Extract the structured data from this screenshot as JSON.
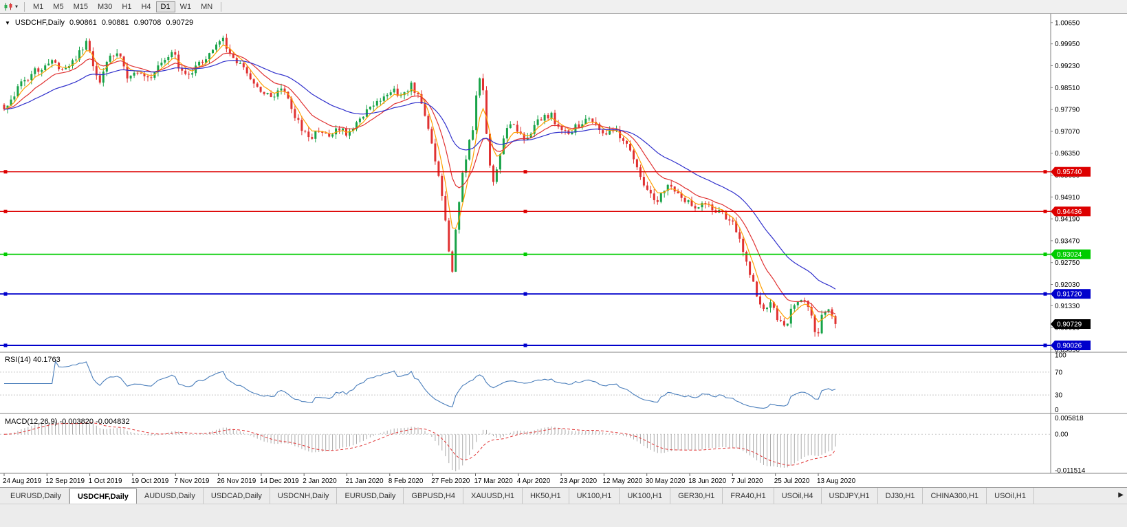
{
  "icons": {
    "collapse": "▼",
    "dropdown": "▾",
    "scroll_right": "▶"
  },
  "toolbar": {
    "timeframes": [
      "M1",
      "M5",
      "M15",
      "M30",
      "H1",
      "H4",
      "D1",
      "W1",
      "MN"
    ],
    "active_timeframe": "D1"
  },
  "chart_header": {
    "symbol": "USDCHF,Daily",
    "open": "0.90861",
    "high": "0.90881",
    "low": "0.90708",
    "close": "0.90729"
  },
  "chart_data": {
    "type": "candlestick",
    "symbol": "USDCHF",
    "timeframe": "Daily",
    "last_bar": {
      "open": 0.90861,
      "high": 0.90881,
      "low": 0.90708,
      "close": 0.90729
    },
    "current_price": {
      "value": 0.90729,
      "label": "0.90729",
      "tag_color": "#000000"
    },
    "price_axis": {
      "min": 0.898,
      "max": 1.0094,
      "labels": [
        "1.00650",
        "0.99950",
        "0.99230",
        "0.98510",
        "0.97790",
        "0.97070",
        "0.96350",
        "0.95630",
        "0.94910",
        "0.94190",
        "0.93470",
        "0.92750",
        "0.92030",
        "0.91330",
        "0.90610",
        "0.89890"
      ]
    },
    "colors": {
      "up": "#18a348",
      "down": "#e03232",
      "background": "#ffffff"
    },
    "levels": [
      {
        "value": 0.9574,
        "label": "0.95740",
        "color": "#dd0000",
        "width": 1.4,
        "type": "resistance"
      },
      {
        "value": 0.94436,
        "label": "0.94436",
        "color": "#dd0000",
        "width": 1.4,
        "type": "resistance"
      },
      {
        "value": 0.93024,
        "label": "0.93024",
        "color": "#00cc00",
        "width": 1.8,
        "type": "support"
      },
      {
        "value": 0.9172,
        "label": "0.91720",
        "color": "#0000cc",
        "width": 2,
        "type": "support"
      },
      {
        "value": 0.90026,
        "label": "0.90026",
        "color": "#0000cc",
        "width": 2,
        "type": "support"
      }
    ],
    "moving_averages": [
      {
        "name": "fast",
        "period": 5,
        "color": "#ffa000"
      },
      {
        "name": "medium",
        "period": 13,
        "color": "#e03232"
      },
      {
        "name": "slow",
        "period": 34,
        "color": "#3030cc"
      }
    ],
    "num_candles": 244,
    "price_path": [
      [
        0,
        0.978
      ],
      [
        0.02,
        0.986
      ],
      [
        0.04,
        0.991
      ],
      [
        0.057,
        0.994
      ],
      [
        0.07,
        0.99
      ],
      [
        0.09,
        0.996
      ],
      [
        0.098,
        1.0
      ],
      [
        0.107,
        0.993
      ],
      [
        0.115,
        0.987
      ],
      [
        0.127,
        0.995
      ],
      [
        0.136,
        0.997
      ],
      [
        0.148,
        0.989
      ],
      [
        0.16,
        0.991
      ],
      [
        0.173,
        0.988
      ],
      [
        0.189,
        0.993
      ],
      [
        0.202,
        0.997
      ],
      [
        0.212,
        0.991
      ],
      [
        0.222,
        0.989
      ],
      [
        0.235,
        0.993
      ],
      [
        0.251,
        0.998
      ],
      [
        0.261,
        1.0015
      ],
      [
        0.27,
        0.998
      ],
      [
        0.28,
        0.9935
      ],
      [
        0.293,
        0.989
      ],
      [
        0.305,
        0.9855
      ],
      [
        0.322,
        0.982
      ],
      [
        0.334,
        0.9845
      ],
      [
        0.347,
        0.978
      ],
      [
        0.357,
        0.9715
      ],
      [
        0.369,
        0.9685
      ],
      [
        0.38,
        0.9715
      ],
      [
        0.392,
        0.9695
      ],
      [
        0.404,
        0.9715
      ],
      [
        0.413,
        0.9702
      ],
      [
        0.425,
        0.9745
      ],
      [
        0.437,
        0.9775
      ],
      [
        0.452,
        0.9815
      ],
      [
        0.466,
        0.9845
      ],
      [
        0.479,
        0.9825
      ],
      [
        0.489,
        0.986
      ],
      [
        0.495,
        0.984
      ],
      [
        0.504,
        0.978
      ],
      [
        0.512,
        0.97
      ],
      [
        0.52,
        0.96
      ],
      [
        0.528,
        0.948
      ],
      [
        0.534,
        0.933
      ],
      [
        0.539,
        0.924
      ],
      [
        0.545,
        0.943
      ],
      [
        0.551,
        0.956
      ],
      [
        0.558,
        0.966
      ],
      [
        0.564,
        0.972
      ],
      [
        0.57,
        0.987
      ],
      [
        0.574,
        0.99
      ],
      [
        0.579,
        0.974
      ],
      [
        0.584,
        0.96
      ],
      [
        0.589,
        0.953
      ],
      [
        0.596,
        0.963
      ],
      [
        0.603,
        0.97
      ],
      [
        0.611,
        0.973
      ],
      [
        0.62,
        0.97
      ],
      [
        0.628,
        0.968
      ],
      [
        0.638,
        0.9725
      ],
      [
        0.648,
        0.975
      ],
      [
        0.657,
        0.9765
      ],
      [
        0.667,
        0.972
      ],
      [
        0.677,
        0.97
      ],
      [
        0.69,
        0.9725
      ],
      [
        0.702,
        0.9745
      ],
      [
        0.715,
        0.972
      ],
      [
        0.727,
        0.97
      ],
      [
        0.739,
        0.97
      ],
      [
        0.749,
        0.966
      ],
      [
        0.758,
        0.96
      ],
      [
        0.766,
        0.955
      ],
      [
        0.777,
        0.95
      ],
      [
        0.785,
        0.946
      ],
      [
        0.793,
        0.951
      ],
      [
        0.801,
        0.9525
      ],
      [
        0.812,
        0.95
      ],
      [
        0.822,
        0.948
      ],
      [
        0.832,
        0.9455
      ],
      [
        0.843,
        0.9475
      ],
      [
        0.851,
        0.9448
      ],
      [
        0.862,
        0.944
      ],
      [
        0.872,
        0.942
      ],
      [
        0.882,
        0.938
      ],
      [
        0.89,
        0.93
      ],
      [
        0.898,
        0.923
      ],
      [
        0.906,
        0.916
      ],
      [
        0.915,
        0.911
      ],
      [
        0.923,
        0.914
      ],
      [
        0.931,
        0.908
      ],
      [
        0.94,
        0.906
      ],
      [
        0.948,
        0.913
      ],
      [
        0.956,
        0.916
      ],
      [
        0.964,
        0.915
      ],
      [
        0.973,
        0.908
      ],
      [
        0.978,
        0.902
      ],
      [
        0.984,
        0.91
      ],
      [
        0.992,
        0.9125
      ],
      [
        1,
        0.9073
      ]
    ],
    "dates": [
      "24 Aug 2019",
      "12 Sep 2019",
      "1 Oct 2019",
      "19 Oct 2019",
      "7 Nov 2019",
      "26 Nov 2019",
      "14 Dec 2019",
      "2 Jan 2020",
      "21 Jan 2020",
      "8 Feb 2020",
      "27 Feb 2020",
      "17 Mar 2020",
      "4 Apr 2020",
      "23 Apr 2020",
      "12 May 2020",
      "30 May 2020",
      "18 Jun 2020",
      "7 Jul 2020",
      "25 Jul 2020",
      "13 Aug 2020"
    ],
    "rsi": {
      "label": "RSI(14) 40.1763",
      "period": 14,
      "value": 40.1763,
      "upper": 70,
      "lower": 30,
      "axis_labels": [
        "100",
        "70",
        "30",
        "0"
      ],
      "color": "#4a7ebb"
    },
    "macd": {
      "label": "MACD(12,26,9) -0.003820 -0.004832",
      "value": -0.00382,
      "signal": -0.004832,
      "axis_max": 0.005818,
      "axis_min": -0.011514,
      "axis_labels": [
        "0.005818",
        "0.00",
        "-0.011514"
      ],
      "histogram_color": "#aaaaaa",
      "signal_color": "#e03232"
    }
  },
  "tabbar": {
    "tabs": [
      "EURUSD,Daily",
      "USDCHF,Daily",
      "AUDUSD,Daily",
      "USDCAD,Daily",
      "USDCNH,Daily",
      "EURUSD,Daily",
      "GBPUSD,H4",
      "XAUUSD,H1",
      "HK50,H1",
      "UK100,H1",
      "UK100,H1",
      "GER30,H1",
      "FRA40,H1",
      "USOil,H4",
      "USDJPY,H1",
      "DJ30,H1",
      "CHINA300,H1",
      "USOil,H1"
    ],
    "active_index": 1
  }
}
